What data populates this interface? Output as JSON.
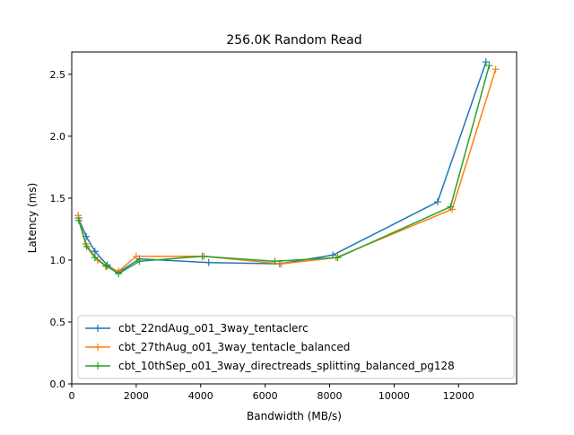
{
  "chart_data": {
    "type": "line",
    "title": "256.0K  Random Read",
    "xlabel": "Bandwidth (MB/s)",
    "ylabel": "Latency (ms)",
    "xlim": [
      0,
      13800
    ],
    "ylim": [
      0,
      2.68
    ],
    "xticks": [
      0,
      2000,
      4000,
      6000,
      8000,
      10000,
      12000
    ],
    "yticks": [
      0.0,
      0.5,
      1.0,
      1.5,
      2.0,
      2.5
    ],
    "xtick_labels": [
      "0",
      "2000",
      "4000",
      "6000",
      "8000",
      "10000",
      "12000"
    ],
    "ytick_labels": [
      "0.0",
      "0.5",
      "1.0",
      "1.5",
      "2.0",
      "2.5"
    ],
    "grid": false,
    "legend_position": "lower-left",
    "marker": "plus",
    "series": [
      {
        "name": "cbt_22ndAug_o01_3way_tentaclerc",
        "color": "#1f77b4",
        "x": [
          210,
          450,
          720,
          1100,
          1450,
          2100,
          4250,
          6450,
          8100,
          11350,
          12850
        ],
        "y": [
          1.34,
          1.19,
          1.07,
          0.96,
          0.9,
          1.01,
          0.98,
          0.97,
          1.04,
          1.47,
          2.6
        ]
      },
      {
        "name": "cbt_27thAug_o01_3way_tentacle_balanced",
        "color": "#ff7f0e",
        "x": [
          200,
          430,
          800,
          1050,
          1450,
          2000,
          4100,
          6500,
          8200,
          11800,
          13150
        ],
        "y": [
          1.36,
          1.13,
          1.0,
          0.95,
          0.91,
          1.03,
          1.03,
          0.97,
          1.02,
          1.41,
          2.54
        ]
      },
      {
        "name": "cbt_10thSep_o01_3way_directreads_splitting_balanced_pg128",
        "color": "#2ca02c",
        "x": [
          220,
          460,
          720,
          1080,
          1450,
          2100,
          4050,
          6300,
          8250,
          11750,
          12950
        ],
        "y": [
          1.32,
          1.11,
          1.02,
          0.95,
          0.89,
          0.99,
          1.03,
          0.99,
          1.02,
          1.43,
          2.57
        ]
      }
    ]
  }
}
